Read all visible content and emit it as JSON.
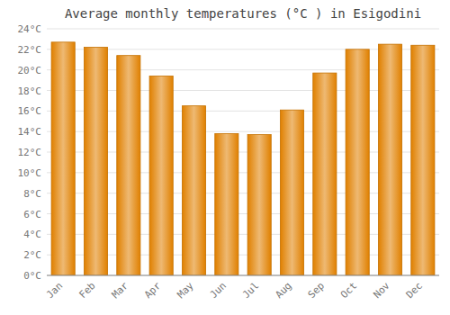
{
  "chart_data": {
    "type": "bar",
    "title": "Average monthly temperatures (°C ) in Esigodini",
    "categories": [
      "Jan",
      "Feb",
      "Mar",
      "Apr",
      "May",
      "Jun",
      "Jul",
      "Aug",
      "Sep",
      "Oct",
      "Nov",
      "Dec"
    ],
    "values": [
      22.7,
      22.2,
      21.4,
      19.4,
      16.5,
      13.8,
      13.7,
      16.1,
      19.7,
      22.0,
      22.5,
      22.4
    ],
    "color": "#E08000",
    "ylim": [
      0,
      24
    ],
    "yticks": [
      {
        "value": 0,
        "label": "0°C"
      },
      {
        "value": 2,
        "label": "2°C"
      },
      {
        "value": 4,
        "label": "4°C"
      },
      {
        "value": 6,
        "label": "6°C"
      },
      {
        "value": 8,
        "label": "8°C"
      },
      {
        "value": 10,
        "label": "10°C"
      },
      {
        "value": 12,
        "label": "12°C"
      },
      {
        "value": 14,
        "label": "14°C"
      },
      {
        "value": 16,
        "label": "16°C"
      },
      {
        "value": 18,
        "label": "18°C"
      },
      {
        "value": 20,
        "label": "20°C"
      },
      {
        "value": 22,
        "label": "22°C"
      },
      {
        "value": 24,
        "label": "24°C"
      }
    ],
    "grid": true
  }
}
